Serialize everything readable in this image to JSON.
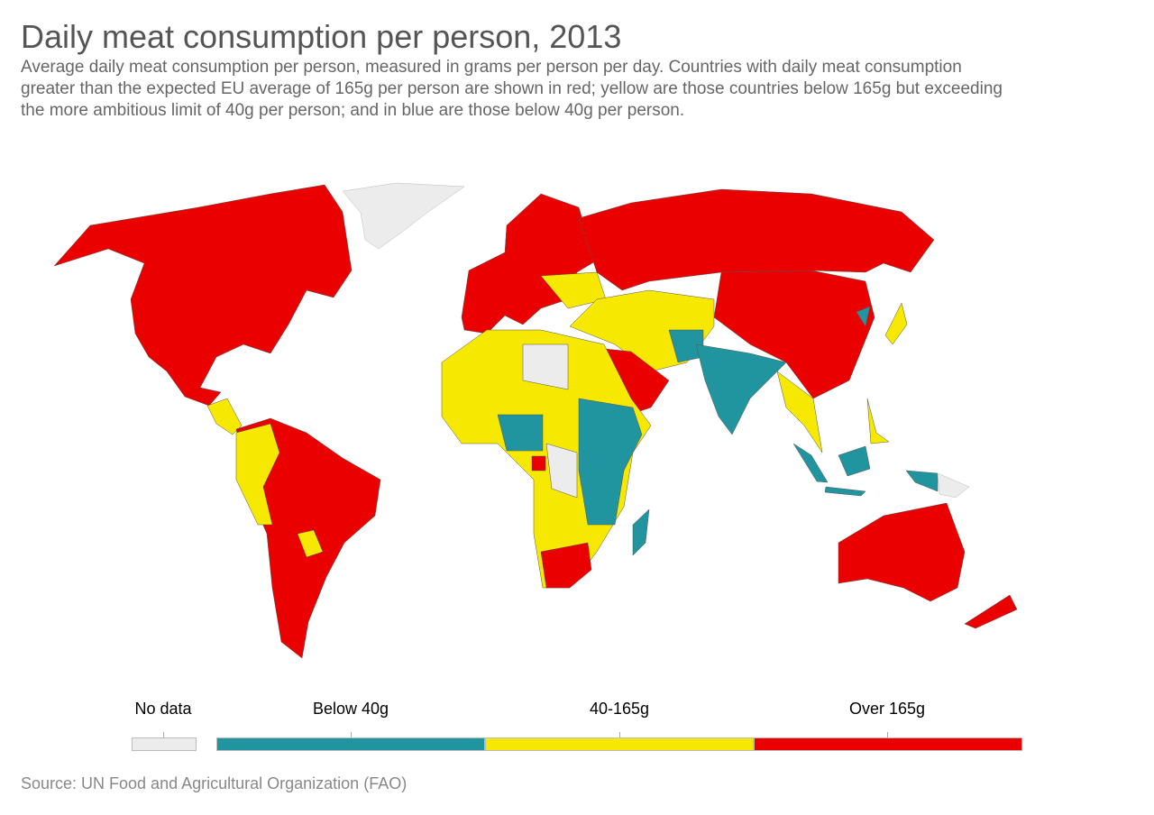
{
  "header": {
    "title": "Daily meat consumption per person, 2013",
    "subtitle": "Average daily meat consumption per person, measured in grams per person per day. Countries with daily meat consumption greater than the expected EU average of 165g per person are shown in red; yellow are those countries below 165g but exceeding the more ambitious limit of 40g per person; and in blue are those below 40g per person."
  },
  "legend": {
    "no_data": {
      "label": "No data",
      "color": "#ececec"
    },
    "bins": [
      {
        "label": "Below 40g",
        "color": "#21959f"
      },
      {
        "label": "40-165g",
        "color": "#f7e800"
      },
      {
        "label": "Over 165g",
        "color": "#eb0000"
      }
    ]
  },
  "source": "Source: UN Food and Agricultural Organization (FAO)"
}
